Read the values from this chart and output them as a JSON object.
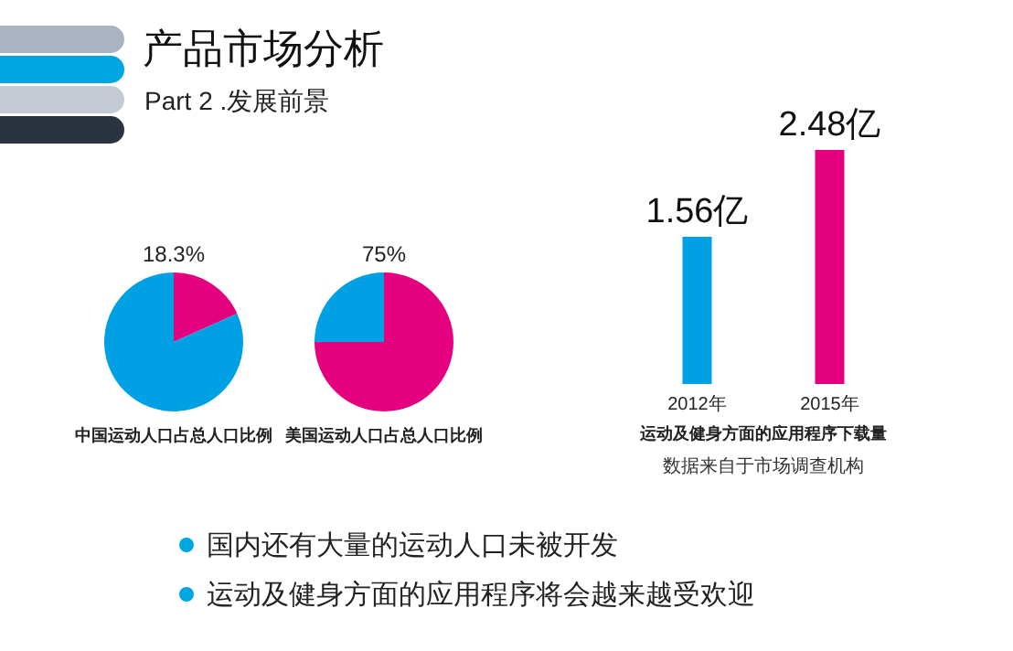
{
  "chart_data": [
    {
      "type": "other",
      "title": "产品市场分析",
      "subtitle": "Part 2 .发展前景"
    },
    {
      "type": "pie",
      "title": "中国运动人口占总人口比例",
      "categories": [
        null,
        null
      ],
      "values": [
        18.3,
        81.7
      ],
      "colors": [
        "#e4007f",
        "#00a0e4"
      ],
      "value_labels": [
        "18.3%",
        null
      ]
    },
    {
      "type": "pie",
      "title": "美国运动人口占总人口比例",
      "categories": [
        null,
        null
      ],
      "values": [
        75,
        25
      ],
      "colors": [
        "#e4007f",
        "#00a0e4"
      ],
      "value_labels": [
        "75%",
        null
      ]
    },
    {
      "type": "bar",
      "title": "运动及健身方面的应用程序下载量",
      "categories": [
        "2012年",
        "2015年"
      ],
      "values": [
        1.56,
        2.48
      ],
      "colors": [
        "#00a0e4",
        "#e4007f"
      ],
      "value_labels": [
        "1.56亿",
        "2.48亿"
      ],
      "annotations": [
        "数据来自于市场调查机构"
      ]
    },
    {
      "type": "other",
      "annotations": [
        "国内还有大量的运动人口未被开发",
        "运动及健身方面的应用程序将会越来越受欢迎"
      ]
    }
  ]
}
